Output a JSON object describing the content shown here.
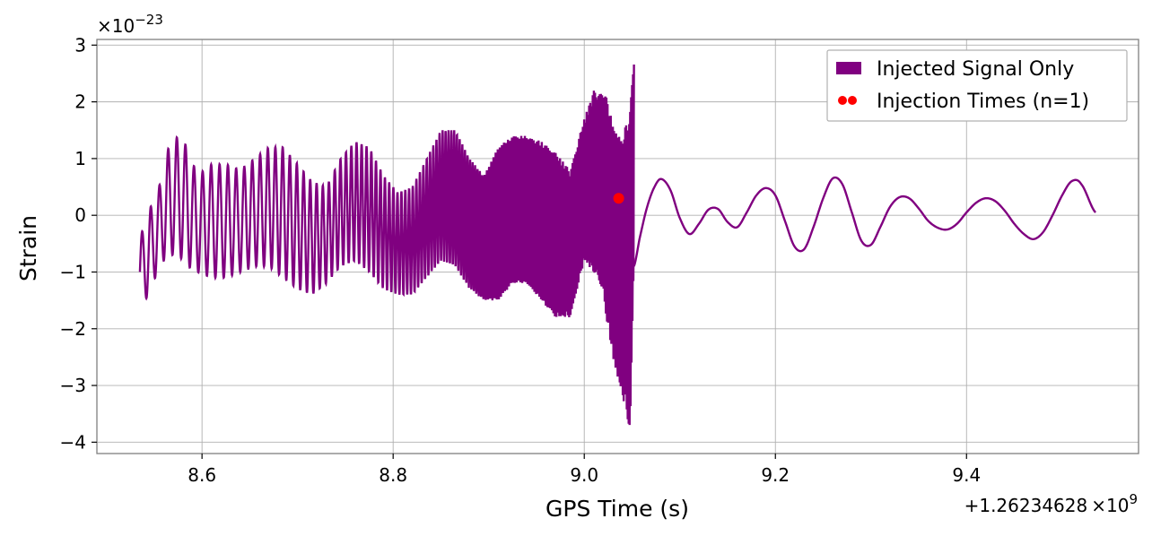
{
  "chart_data": {
    "type": "line",
    "title": "",
    "xlabel": "GPS Time (s)",
    "ylabel": "Strain",
    "x_offset_label": "+1.26234628",
    "x_offset_exp_base": "×10",
    "x_offset_exp": "9",
    "y_multiplier_label": "×10",
    "y_multiplier_exp": "−23",
    "xlim": [
      8.49,
      9.58
    ],
    "ylim": [
      -4.2,
      3.1
    ],
    "x_ticks": [
      8.6,
      8.8,
      9.0,
      9.2,
      9.4
    ],
    "x_tick_labels": [
      "8.6",
      "8.8",
      "9.0",
      "9.2",
      "9.4"
    ],
    "y_ticks": [
      -4,
      -3,
      -2,
      -1,
      0,
      1,
      2,
      3
    ],
    "y_tick_labels": [
      "−4",
      "−3",
      "−2",
      "−1",
      "0",
      "1",
      "2",
      "3"
    ],
    "grid": true,
    "legend_position": "top-right",
    "series": [
      {
        "name": "Injected Signal Only",
        "color": "#800080",
        "kind": "line",
        "envelope": {
          "note_x": [
            8.535,
            8.545,
            8.555,
            8.565,
            8.575,
            8.585,
            8.595,
            8.61,
            8.625,
            8.64,
            8.655,
            8.67,
            8.685,
            8.7,
            8.715,
            8.73,
            8.745,
            8.76,
            8.775,
            8.79,
            8.805,
            8.82,
            8.835,
            8.85,
            8.865,
            8.88,
            8.895,
            8.91,
            8.925,
            8.94,
            8.955,
            8.97,
            8.985,
            9.0,
            9.01,
            9.02,
            9.03,
            9.04,
            9.048,
            9.052
          ],
          "upper": [
            -0.4,
            0.1,
            0.5,
            1.2,
            1.4,
            1.2,
            0.7,
            0.9,
            0.9,
            0.8,
            1.0,
            1.2,
            1.2,
            0.9,
            0.6,
            0.5,
            1.0,
            1.3,
            1.2,
            0.7,
            0.4,
            0.5,
            1.0,
            1.5,
            1.5,
            1.0,
            0.7,
            1.2,
            1.4,
            1.4,
            1.3,
            1.1,
            0.8,
            1.7,
            2.2,
            2.3,
            1.6,
            1.3,
            2.0,
            2.7
          ],
          "lower": [
            -1.6,
            -1.4,
            -0.9,
            -0.7,
            -0.7,
            -0.9,
            -1.0,
            -1.1,
            -1.1,
            -1.0,
            -0.9,
            -0.9,
            -1.1,
            -1.3,
            -1.4,
            -1.2,
            -0.9,
            -0.8,
            -1.0,
            -1.3,
            -1.4,
            -1.4,
            -1.1,
            -0.8,
            -0.9,
            -1.3,
            -1.5,
            -1.5,
            -1.2,
            -1.2,
            -1.5,
            -1.8,
            -1.8,
            -0.8,
            -1.0,
            -1.5,
            -2.5,
            -3.2,
            -3.8,
            -0.9
          ]
        },
        "ringdown_x": [
          9.052,
          9.058,
          9.065,
          9.072,
          9.08,
          9.09,
          9.1,
          9.11,
          9.12,
          9.13,
          9.14,
          9.15,
          9.16,
          9.17,
          9.18,
          9.19,
          9.2,
          9.21,
          9.22,
          9.23,
          9.24,
          9.25,
          9.26,
          9.27,
          9.28,
          9.29,
          9.3,
          9.31,
          9.32,
          9.33,
          9.34,
          9.35,
          9.36,
          9.37,
          9.38,
          9.39,
          9.4,
          9.41,
          9.42,
          9.43,
          9.44,
          9.45,
          9.46,
          9.47,
          9.48,
          9.49,
          9.5,
          9.51,
          9.52,
          9.535
        ],
        "ringdown_y": [
          -0.9,
          -0.4,
          0.1,
          0.45,
          0.64,
          0.45,
          -0.05,
          -0.33,
          -0.15,
          0.1,
          0.11,
          -0.12,
          -0.21,
          0.05,
          0.35,
          0.48,
          0.35,
          -0.1,
          -0.55,
          -0.6,
          -0.2,
          0.3,
          0.65,
          0.55,
          0.05,
          -0.45,
          -0.52,
          -0.2,
          0.15,
          0.32,
          0.3,
          0.12,
          -0.1,
          -0.22,
          -0.25,
          -0.15,
          0.05,
          0.22,
          0.3,
          0.25,
          0.08,
          -0.15,
          -0.33,
          -0.42,
          -0.3,
          0.0,
          0.35,
          0.6,
          0.55,
          0.05
        ]
      },
      {
        "name": "Injection Times (n=1)",
        "color": "#ff0000",
        "kind": "scatter",
        "x": [
          9.036
        ],
        "y": [
          0.3
        ]
      }
    ]
  }
}
